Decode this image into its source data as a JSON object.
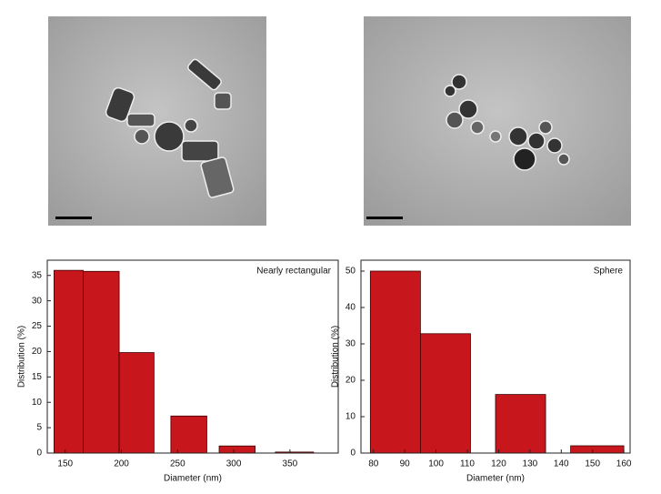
{
  "chart_data": [
    {
      "type": "histogram",
      "annotation": "Nearly rectangular",
      "xlabel": "Diameter (nm)",
      "ylabel": "Distribution (%)",
      "bins": [
        140,
        166,
        198,
        229,
        244,
        276,
        287,
        319,
        337,
        371
      ],
      "counts": [
        36,
        35.8,
        19.8,
        0,
        7.3,
        0,
        1.4,
        0,
        0.2
      ],
      "color": "#c8161d",
      "xlim": [
        134,
        393
      ],
      "xticks": [
        150,
        200,
        250,
        300,
        350
      ],
      "ylim": [
        0,
        38
      ],
      "yticks": [
        0,
        5,
        10,
        15,
        20,
        25,
        30,
        35
      ]
    },
    {
      "type": "histogram",
      "annotation": "Sphere",
      "xlabel": "Diameter (nm)",
      "ylabel": "Distribution (%)",
      "bins": [
        79,
        95,
        111,
        119,
        135,
        143,
        160
      ],
      "counts": [
        50,
        32.8,
        0,
        16.1,
        0,
        2
      ],
      "color": "#c8161d",
      "xlim": [
        76,
        162
      ],
      "xticks": [
        80,
        90,
        100,
        110,
        120,
        130,
        140,
        150,
        160
      ],
      "ylim": [
        0,
        53
      ],
      "yticks": [
        0,
        10,
        20,
        30,
        40,
        50
      ]
    }
  ]
}
